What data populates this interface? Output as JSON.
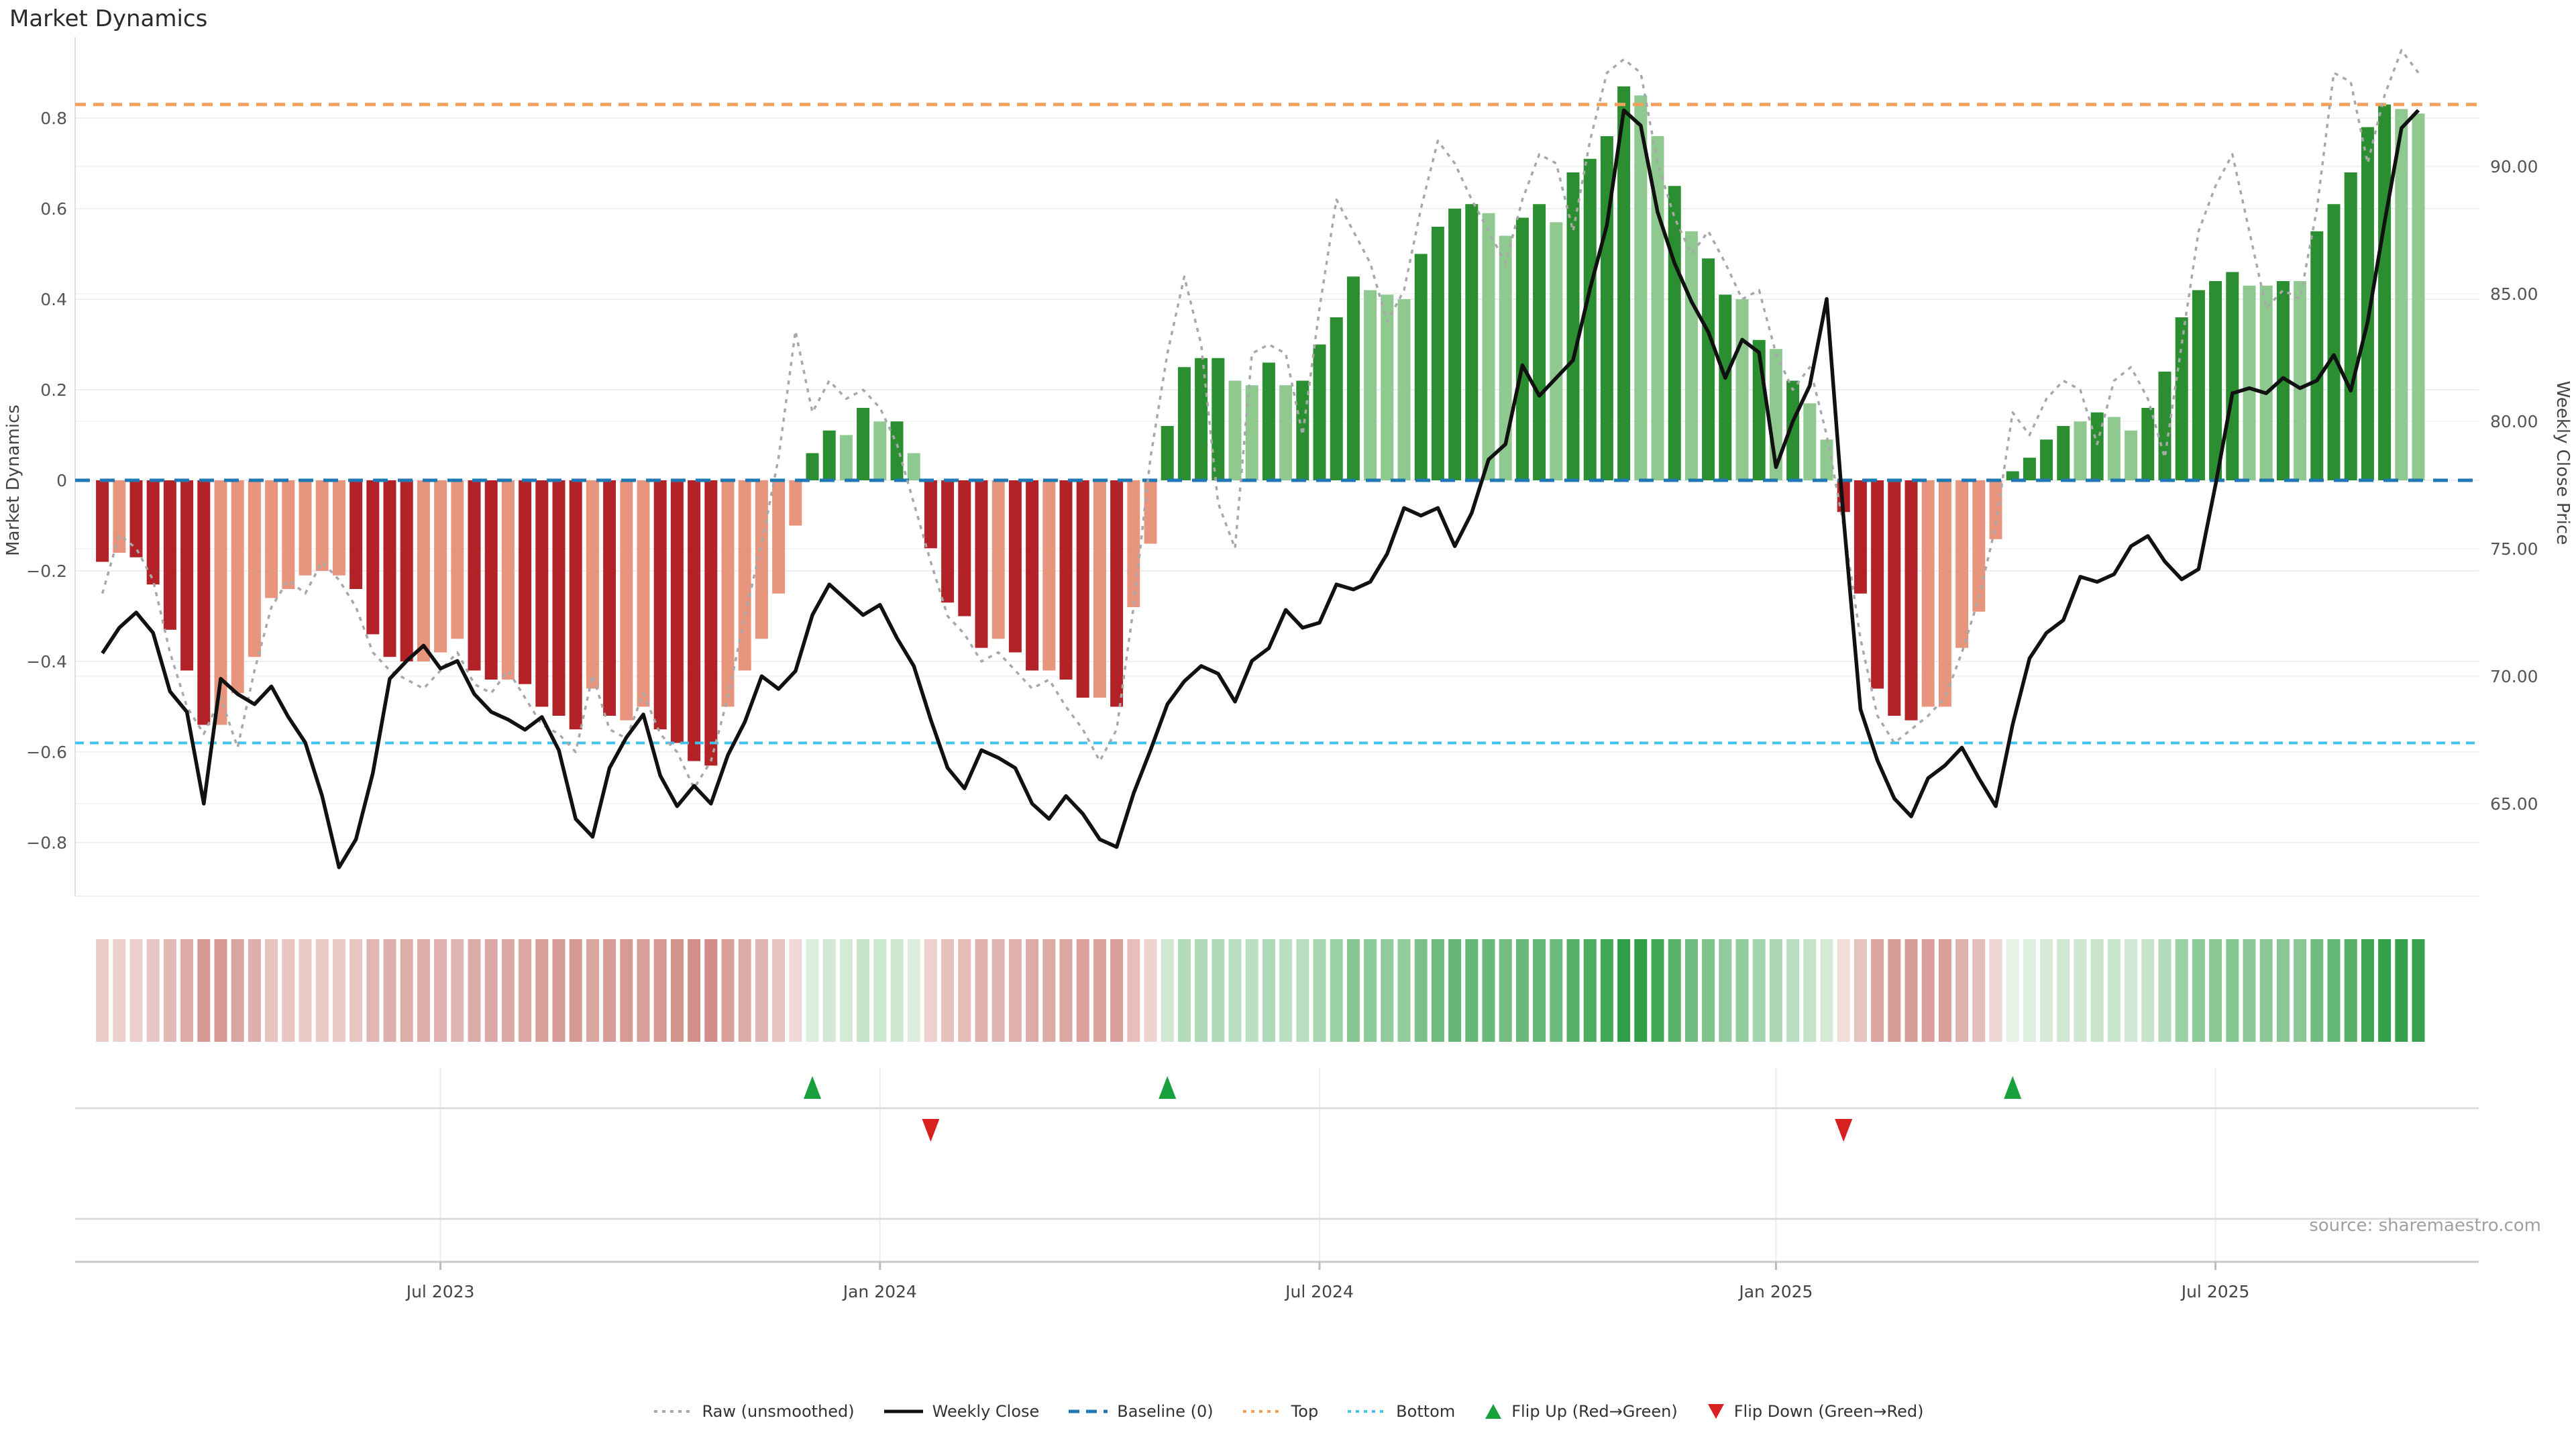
{
  "page": {
    "title": "Market Dynamics",
    "source": "source: sharemaestro.com"
  },
  "axes": {
    "left_title": "Market Dynamics",
    "right_title": "Weekly Close Price",
    "left_ticks": [
      "0.8",
      "0.6",
      "0.4",
      "0.2",
      "0",
      "−0.2",
      "−0.4",
      "−0.6",
      "−0.8"
    ],
    "left_tick_values": [
      0.8,
      0.6,
      0.4,
      0.2,
      0,
      -0.2,
      -0.4,
      -0.6,
      -0.8
    ],
    "right_ticks": [
      "90.00",
      "85.00",
      "80.00",
      "75.00",
      "70.00",
      "65.00"
    ],
    "right_tick_values": [
      90,
      85,
      80,
      75,
      70,
      65
    ],
    "x_ticks": [
      {
        "label": "Jul 2023",
        "week": 20
      },
      {
        "label": "Jan 2024",
        "week": 46
      },
      {
        "label": "Jul 2024",
        "week": 72
      },
      {
        "label": "Jan 2025",
        "week": 99
      },
      {
        "label": "Jul 2025",
        "week": 125
      }
    ]
  },
  "legend": [
    {
      "label": "Raw (unsmoothed)",
      "type": "line-dotted",
      "color": "#a8a8a8"
    },
    {
      "label": "Weekly Close",
      "type": "line-solid",
      "color": "#111111"
    },
    {
      "label": "Baseline (0)",
      "type": "line-dashed",
      "color": "#1f77b4"
    },
    {
      "label": "Top",
      "type": "line-dotted",
      "color": "#f2a25c"
    },
    {
      "label": "Bottom",
      "type": "line-dotted",
      "color": "#3fc2ed"
    },
    {
      "label": "Flip Up (Red→Green)",
      "type": "triangle-up",
      "color": "#18a03c"
    },
    {
      "label": "Flip Down (Green→Red)",
      "type": "triangle-down",
      "color": "#d7201f"
    }
  ],
  "chart_data": {
    "type": "bar+line",
    "title": "Market Dynamics",
    "x_unit": "week",
    "n_weeks": 138,
    "left_ylim": [
      -0.9,
      1.0
    ],
    "right_ylim": [
      61,
      95
    ],
    "grid": "horizontal",
    "legend_position": "bottom-center",
    "reference_lines": {
      "baseline": 0,
      "top": 0.83,
      "bottom": -0.58
    },
    "flip_up_weeks": [
      42,
      63,
      113
    ],
    "flip_down_weeks": [
      49,
      103
    ],
    "series": [
      {
        "name": "Market Dynamics",
        "type": "bar",
        "axis": "left",
        "values": [
          -0.18,
          -0.16,
          -0.17,
          -0.23,
          -0.33,
          -0.42,
          -0.54,
          -0.54,
          -0.47,
          -0.39,
          -0.26,
          -0.24,
          -0.21,
          -0.2,
          -0.21,
          -0.24,
          -0.34,
          -0.39,
          -0.4,
          -0.4,
          -0.38,
          -0.35,
          -0.42,
          -0.44,
          -0.44,
          -0.45,
          -0.5,
          -0.52,
          -0.55,
          -0.46,
          -0.52,
          -0.53,
          -0.5,
          -0.55,
          -0.58,
          -0.62,
          -0.63,
          -0.5,
          -0.42,
          -0.35,
          -0.25,
          -0.1,
          0.06,
          0.11,
          0.1,
          0.16,
          0.13,
          0.13,
          0.06,
          -0.15,
          -0.27,
          -0.3,
          -0.37,
          -0.35,
          -0.38,
          -0.42,
          -0.42,
          -0.44,
          -0.48,
          -0.48,
          -0.5,
          -0.28,
          -0.14,
          0.12,
          0.25,
          0.27,
          0.27,
          0.22,
          0.21,
          0.26,
          0.21,
          0.22,
          0.3,
          0.36,
          0.45,
          0.42,
          0.41,
          0.4,
          0.5,
          0.56,
          0.6,
          0.61,
          0.59,
          0.54,
          0.58,
          0.61,
          0.57,
          0.68,
          0.71,
          0.76,
          0.87,
          0.85,
          0.76,
          0.65,
          0.55,
          0.49,
          0.41,
          0.4,
          0.31,
          0.29,
          0.22,
          0.17,
          0.09,
          -0.07,
          -0.25,
          -0.46,
          -0.52,
          -0.53,
          -0.5,
          -0.5,
          -0.37,
          -0.29,
          -0.13,
          0.02,
          0.05,
          0.09,
          0.12,
          0.13,
          0.15,
          0.14,
          0.11,
          0.16,
          0.24,
          0.36,
          0.42,
          0.44,
          0.46,
          0.43,
          0.43,
          0.44,
          0.44,
          0.55,
          0.61,
          0.68,
          0.78,
          0.83,
          0.82,
          0.81
        ],
        "shades": [
          "d",
          "l",
          "d",
          "d",
          "d",
          "d",
          "d",
          "l",
          "l",
          "l",
          "l",
          "l",
          "l",
          "l",
          "l",
          "d",
          "d",
          "d",
          "d",
          "l",
          "l",
          "l",
          "d",
          "d",
          "l",
          "d",
          "d",
          "d",
          "d",
          "l",
          "d",
          "l",
          "l",
          "d",
          "d",
          "d",
          "d",
          "l",
          "l",
          "l",
          "l",
          "l",
          "d",
          "d",
          "l",
          "d",
          "l",
          "d",
          "l",
          "d",
          "d",
          "d",
          "d",
          "l",
          "d",
          "d",
          "l",
          "d",
          "d",
          "l",
          "d",
          "l",
          "l",
          "d",
          "d",
          "d",
          "d",
          "l",
          "l",
          "d",
          "l",
          "d",
          "d",
          "d",
          "d",
          "l",
          "l",
          "l",
          "d",
          "d",
          "d",
          "d",
          "l",
          "l",
          "d",
          "d",
          "l",
          "d",
          "d",
          "d",
          "d",
          "l",
          "l",
          "d",
          "l",
          "d",
          "d",
          "l",
          "d",
          "l",
          "d",
          "l",
          "l",
          "d",
          "d",
          "d",
          "d",
          "d",
          "l",
          "l",
          "l",
          "l",
          "l",
          "d",
          "d",
          "d",
          "d",
          "l",
          "d",
          "l",
          "l",
          "d",
          "d",
          "d",
          "d",
          "d",
          "d",
          "l",
          "l",
          "d",
          "l",
          "d",
          "d",
          "d",
          "d",
          "d",
          "l",
          "l"
        ]
      },
      {
        "name": "Weekly Close",
        "type": "line",
        "axis": "right",
        "values": [
          70.9,
          71.9,
          72.5,
          71.7,
          69.4,
          68.6,
          65.0,
          69.9,
          69.3,
          68.9,
          69.6,
          68.4,
          67.4,
          65.3,
          62.5,
          63.6,
          66.2,
          69.9,
          70.6,
          71.2,
          70.3,
          70.6,
          69.3,
          68.6,
          68.3,
          67.9,
          68.4,
          67.1,
          64.4,
          63.7,
          66.4,
          67.6,
          68.5,
          66.1,
          64.9,
          65.7,
          65.0,
          66.9,
          68.2,
          70.0,
          69.5,
          70.2,
          72.4,
          73.6,
          73.0,
          72.4,
          72.8,
          71.5,
          70.4,
          68.3,
          66.4,
          65.6,
          67.1,
          66.8,
          66.4,
          65.0,
          64.4,
          65.3,
          64.6,
          63.6,
          63.3,
          65.4,
          67.1,
          68.9,
          69.8,
          70.4,
          70.1,
          69.0,
          70.6,
          71.1,
          72.6,
          71.9,
          72.1,
          73.6,
          73.4,
          73.7,
          74.8,
          76.6,
          76.3,
          76.6,
          75.1,
          76.4,
          78.5,
          79.1,
          82.2,
          81.0,
          81.7,
          82.4,
          85.2,
          87.7,
          92.2,
          91.6,
          88.2,
          86.2,
          84.7,
          83.5,
          81.7,
          83.2,
          82.7,
          78.2,
          80.0,
          81.4,
          84.8,
          76.2,
          68.7,
          66.7,
          65.2,
          64.5,
          66.0,
          66.5,
          67.2,
          66.0,
          64.9,
          68.1,
          70.7,
          71.7,
          72.2,
          73.9,
          73.7,
          74.0,
          75.1,
          75.5,
          74.5,
          73.8,
          74.2,
          77.5,
          81.1,
          81.3,
          81.1,
          81.7,
          81.3,
          81.6,
          82.6,
          81.2,
          83.9,
          87.8,
          91.5,
          92.2
        ]
      },
      {
        "name": "Raw (unsmoothed)",
        "type": "line",
        "axis": "left",
        "style": "dotted",
        "values": [
          -0.25,
          -0.12,
          -0.15,
          -0.22,
          -0.38,
          -0.5,
          -0.56,
          -0.48,
          -0.59,
          -0.42,
          -0.28,
          -0.22,
          -0.25,
          -0.18,
          -0.22,
          -0.28,
          -0.38,
          -0.42,
          -0.44,
          -0.46,
          -0.42,
          -0.38,
          -0.45,
          -0.47,
          -0.42,
          -0.48,
          -0.54,
          -0.56,
          -0.6,
          -0.43,
          -0.55,
          -0.57,
          -0.47,
          -0.56,
          -0.6,
          -0.68,
          -0.62,
          -0.48,
          -0.3,
          -0.14,
          0.05,
          0.33,
          0.15,
          0.22,
          0.18,
          0.2,
          0.16,
          0.08,
          -0.05,
          -0.18,
          -0.3,
          -0.34,
          -0.4,
          -0.38,
          -0.42,
          -0.46,
          -0.44,
          -0.5,
          -0.55,
          -0.62,
          -0.55,
          -0.28,
          0.05,
          0.28,
          0.45,
          0.3,
          -0.05,
          -0.15,
          0.28,
          0.3,
          0.28,
          0.1,
          0.38,
          0.62,
          0.55,
          0.48,
          0.35,
          0.42,
          0.6,
          0.75,
          0.7,
          0.62,
          0.55,
          0.48,
          0.62,
          0.72,
          0.7,
          0.55,
          0.75,
          0.9,
          0.93,
          0.9,
          0.7,
          0.58,
          0.5,
          0.55,
          0.48,
          0.4,
          0.42,
          0.28,
          0.2,
          0.25,
          0.1,
          -0.1,
          -0.35,
          -0.52,
          -0.58,
          -0.55,
          -0.52,
          -0.48,
          -0.38,
          -0.26,
          -0.1,
          0.15,
          0.1,
          0.18,
          0.22,
          0.2,
          0.08,
          0.22,
          0.25,
          0.18,
          0.05,
          0.3,
          0.55,
          0.65,
          0.72,
          0.55,
          0.38,
          0.42,
          0.4,
          0.6,
          0.9,
          0.88,
          0.7,
          0.85,
          0.95,
          0.9
        ]
      }
    ],
    "colors": {
      "bar_dark_red": "#b22227",
      "bar_light_red": "#e8957e",
      "bar_dark_green": "#2b8f31",
      "bar_light_green": "#8fc98f",
      "baseline": "#1f77b4",
      "top_line": "#f2a25c",
      "bottom_line": "#3fc2ed",
      "raw_line": "#a8a8a8",
      "close_line": "#111111",
      "flip_up": "#18a03c",
      "flip_down": "#d7201f",
      "grid": "#edeff4",
      "grid_faint": "#f5f5f8",
      "panel_line": "#d8d8d8",
      "strip_neg_min": "#f6e7e5",
      "strip_neg_max": "#c46d66",
      "strip_pos_min": "#e9f4e9",
      "strip_pos_max": "#2f9e47"
    }
  }
}
